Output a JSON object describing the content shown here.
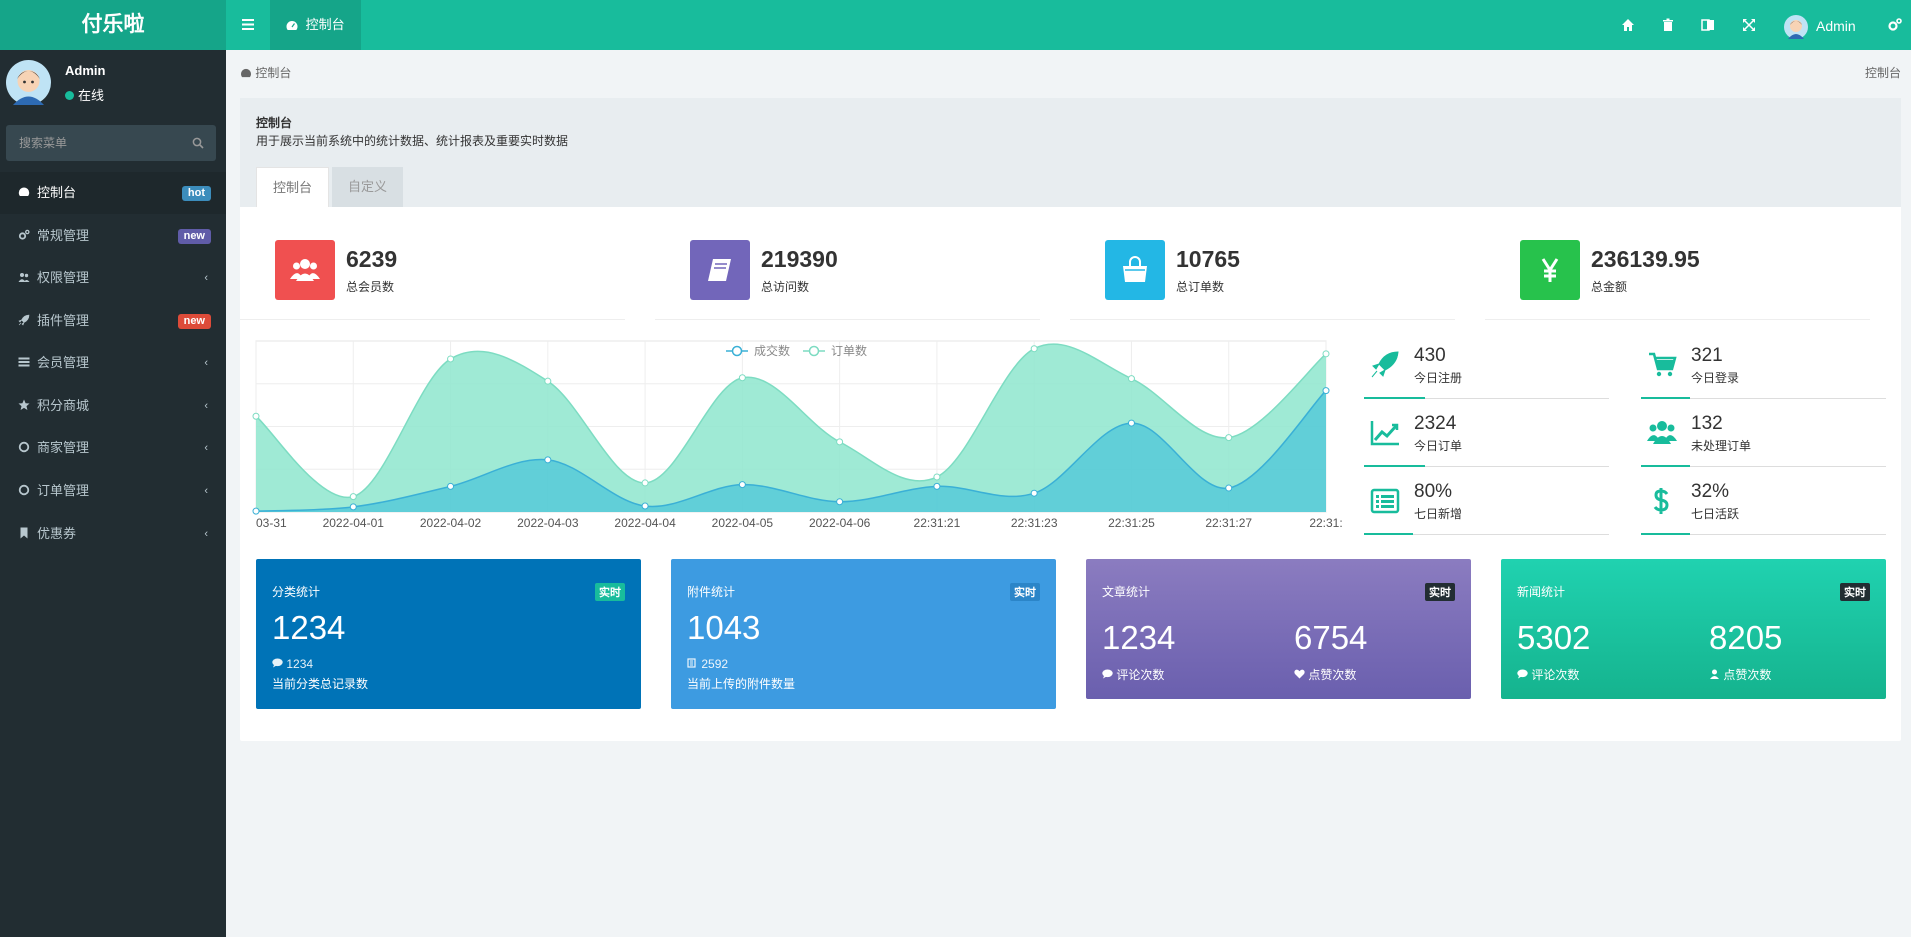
{
  "app": {
    "logo": "付乐啦",
    "user": "Admin"
  },
  "topbar": {
    "tab_label": "控制台"
  },
  "sidebar": {
    "user_name": "Admin",
    "user_status": "在线",
    "search_placeholder": "搜索菜单",
    "items": [
      {
        "label": "控制台",
        "badge": "hot",
        "badge_color": "#3c8dbc"
      },
      {
        "label": "常规管理",
        "badge": "new",
        "badge_color": "#605ca8"
      },
      {
        "label": "权限管理",
        "chevron": "‹"
      },
      {
        "label": "插件管理",
        "badge": "new",
        "badge_color": "#dd4b39"
      },
      {
        "label": "会员管理",
        "chevron": "‹"
      },
      {
        "label": "积分商城",
        "chevron": "‹"
      },
      {
        "label": "商家管理",
        "chevron": "‹"
      },
      {
        "label": "订单管理",
        "chevron": "‹"
      },
      {
        "label": "优惠券",
        "chevron": "‹"
      }
    ]
  },
  "breadcrumb": {
    "current": "控制台",
    "right": "控制台"
  },
  "panel": {
    "title": "控制台",
    "description": "用于展示当前系统中的统计数据、统计报表及重要实时数据",
    "tabs": [
      "控制台",
      "自定义"
    ]
  },
  "stats": [
    {
      "value": "6239",
      "label": "总会员数",
      "color": "#f05050",
      "icon": "users-icon"
    },
    {
      "value": "219390",
      "label": "总访问数",
      "color": "#7266ba",
      "icon": "book-icon"
    },
    {
      "value": "10765",
      "label": "总订单数",
      "color": "#23b7e5",
      "icon": "shopping-bag-icon"
    },
    {
      "value": "236139.95",
      "label": "总金额",
      "color": "#27c24c",
      "icon": "yen-icon"
    }
  ],
  "chart_data": {
    "type": "area",
    "legend": [
      "成交数",
      "订单数"
    ],
    "categories": [
      "03-31",
      "2022-04-01",
      "2022-04-02",
      "2022-04-03",
      "2022-04-04",
      "2022-04-05",
      "2022-04-06",
      "22:31:21",
      "22:31:23",
      "22:31:25",
      "22:31:27",
      "22:31:"
    ],
    "series": [
      {
        "name": "成交数",
        "values": [
          10,
          60,
          300,
          610,
          70,
          320,
          120,
          300,
          220,
          1040,
          280,
          1420
        ],
        "color": "#4cc6d8"
      },
      {
        "name": "订单数",
        "values": [
          1120,
          180,
          1790,
          1530,
          340,
          1570,
          820,
          410,
          1910,
          1560,
          870,
          1850
        ],
        "color": "#8ee6ce"
      }
    ],
    "ylim": [
      0,
      2000
    ]
  },
  "mini_stats": [
    {
      "value": "430",
      "label": "今日注册",
      "icon": "rocket-icon",
      "progress": 0.25
    },
    {
      "value": "321",
      "label": "今日登录",
      "icon": "cart-icon",
      "progress": 0.2
    },
    {
      "value": "2324",
      "label": "今日订单",
      "icon": "area-chart-icon",
      "progress": 0.25
    },
    {
      "value": "132",
      "label": "未处理订单",
      "icon": "users-icon",
      "progress": 0.2
    },
    {
      "value": "80%",
      "label": "七日新增",
      "icon": "list-icon",
      "progress": 0.2
    },
    {
      "value": "32%",
      "label": "七日活跃",
      "icon": "dollar-icon",
      "progress": 0.2
    }
  ],
  "cards": [
    {
      "title": "分类统计",
      "badge": "实时",
      "big": "1234",
      "sub": "1234",
      "desc": "当前分类总记录数",
      "bg": "#0073b7",
      "badge_bg": "#18bc9c"
    },
    {
      "title": "附件统计",
      "badge": "实时",
      "big": "1043",
      "sub": "2592",
      "desc": "当前上传的附件数量",
      "bg": "#3d9be1",
      "badge_bg": "#2b85c8"
    },
    {
      "title": "文章统计",
      "badge": "实时",
      "n1": "1234",
      "l1": "评论次数",
      "n2": "6754",
      "l2": "点赞次数",
      "bg": "#7869b3",
      "badge_bg": "#222d32"
    },
    {
      "title": "新闻统计",
      "badge": "实时",
      "n1": "5302",
      "l1": "评论次数",
      "n2": "8205",
      "l2": "点赞次数",
      "bg": "#1bc7a3",
      "badge_bg": "#222d32"
    }
  ]
}
